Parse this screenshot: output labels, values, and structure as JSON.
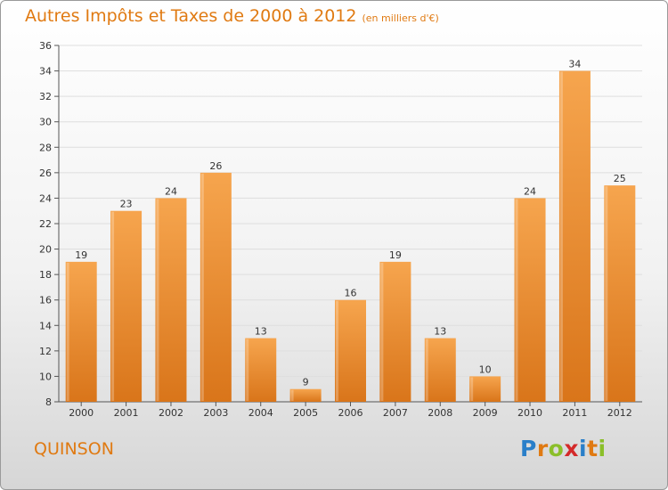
{
  "title": "Autres Impôts et Taxes de 2000 à 2012",
  "subtitle": "(en milliers d'€)",
  "commune": "QUINSON",
  "logo": {
    "text": "Proxiti",
    "letter_colors": [
      "#2a7fc9",
      "#e07a12",
      "#8bbf2a",
      "#d42a2a",
      "#2a7fc9",
      "#e07a12",
      "#8bbf2a"
    ]
  },
  "colors": {
    "bar_light": "#f6a54e",
    "bar_dark": "#d9751a",
    "accent": "#e07a12"
  },
  "chart_data": {
    "type": "bar",
    "title": "Autres Impôts et Taxes de 2000 à 2012",
    "subtitle": "(en milliers d'€)",
    "categories": [
      "2000",
      "2001",
      "2002",
      "2003",
      "2004",
      "2005",
      "2006",
      "2007",
      "2008",
      "2009",
      "2010",
      "2011",
      "2012"
    ],
    "values": [
      19,
      23,
      24,
      26,
      13,
      9,
      16,
      19,
      13,
      10,
      24,
      34,
      25
    ],
    "ylim": [
      8,
      36
    ],
    "yticks": [
      8,
      10,
      12,
      14,
      16,
      18,
      20,
      22,
      24,
      26,
      28,
      30,
      32,
      34,
      36
    ],
    "grid": true,
    "data_labels": true
  }
}
